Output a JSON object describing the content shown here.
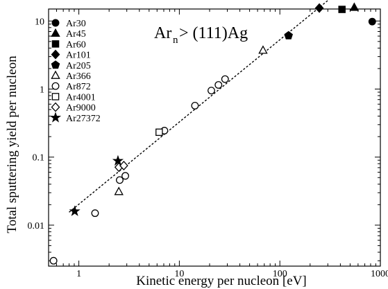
{
  "chart_data": {
    "type": "scatter",
    "title": "",
    "annotation": {
      "main": "Ar",
      "sub": "n",
      "rest": " > (111)Ag"
    },
    "xlabel": "Kinetic energy per nucleon [eV]",
    "ylabel": "Total sputtering yield per nucleon",
    "xscale": "log",
    "yscale": "log",
    "xlim": [
      0.5,
      1000
    ],
    "ylim": [
      0.0025,
      15
    ],
    "x_ticks": [
      {
        "v": 1,
        "label": "1"
      },
      {
        "v": 10,
        "label": "10"
      },
      {
        "v": 100,
        "label": "100"
      },
      {
        "v": 1000,
        "label": "1000"
      }
    ],
    "y_ticks": [
      {
        "v": 0.01,
        "label": "0.01"
      },
      {
        "v": 0.1,
        "label": "0.1"
      },
      {
        "v": 1,
        "label": "1"
      },
      {
        "v": 10,
        "label": "10"
      }
    ],
    "grid": false,
    "legend_position": "top-left",
    "series": [
      {
        "name": "Ar30",
        "marker": "circle-filled",
        "points": [
          [
            830,
            9.8
          ]
        ]
      },
      {
        "name": "Ar45",
        "marker": "triangle-filled",
        "points": [
          [
            550,
            15.8
          ]
        ]
      },
      {
        "name": "Ar60",
        "marker": "square-filled",
        "points": [
          [
            415,
            14.8
          ]
        ]
      },
      {
        "name": "Ar101",
        "marker": "diamond-filled",
        "points": [
          [
            247,
            15.5
          ]
        ]
      },
      {
        "name": "Ar205",
        "marker": "pentagon-filled",
        "points": [
          [
            122,
            6.1
          ]
        ]
      },
      {
        "name": "Ar366",
        "marker": "triangle-open",
        "points": [
          [
            68,
            3.7
          ],
          [
            2.5,
            0.031
          ]
        ]
      },
      {
        "name": "Ar872",
        "marker": "circle-open",
        "points": [
          [
            0.56,
            0.003
          ],
          [
            1.45,
            0.015
          ],
          [
            2.55,
            0.046
          ],
          [
            2.9,
            0.053
          ],
          [
            7.1,
            0.245
          ],
          [
            14.3,
            0.57
          ],
          [
            20.8,
            0.95
          ],
          [
            24.5,
            1.15
          ],
          [
            28.5,
            1.4
          ]
        ]
      },
      {
        "name": "Ar4001",
        "marker": "square-open",
        "points": [
          [
            6.3,
            0.232
          ]
        ]
      },
      {
        "name": "Ar9000",
        "marker": "diamond-open",
        "points": [
          [
            2.5,
            0.071
          ],
          [
            2.8,
            0.075
          ]
        ]
      },
      {
        "name": "Ar27372",
        "marker": "star-filled",
        "points": [
          [
            0.91,
            0.016
          ],
          [
            2.45,
            0.088
          ]
        ]
      }
    ],
    "fit_line": {
      "style": "dashed",
      "points": [
        [
          0.8,
          0.0155
        ],
        [
          300,
          20
        ]
      ]
    }
  }
}
